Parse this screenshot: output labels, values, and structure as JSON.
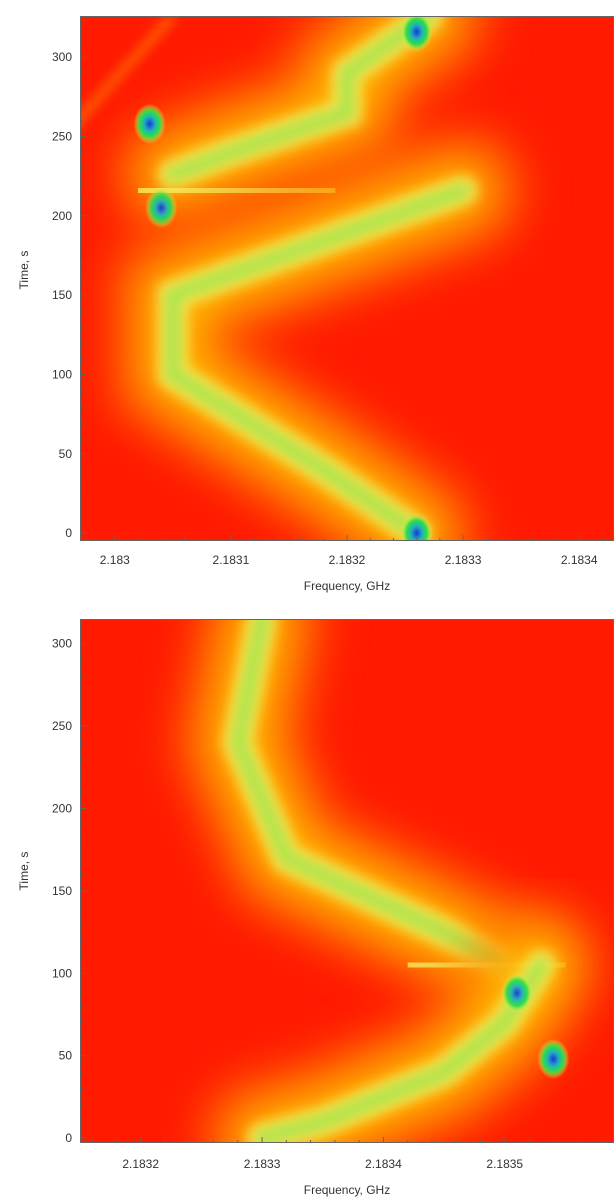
{
  "chart_data": [
    {
      "type": "heatmap",
      "title": "",
      "xlabel": "Frequency, GHz",
      "ylabel": "Time, s",
      "xlim": [
        2.18297,
        2.18343
      ],
      "ylim": [
        -5,
        326
      ],
      "x_ticks": [
        {
          "value": 2.183,
          "label": "2.183"
        },
        {
          "value": 2.1831,
          "label": "2.1831"
        },
        {
          "value": 2.1832,
          "label": "2.1832"
        },
        {
          "value": 2.1833,
          "label": "2.1833"
        },
        {
          "value": 2.1834,
          "label": "2.1834"
        }
      ],
      "y_ticks": [
        {
          "value": 0,
          "label": "0"
        },
        {
          "value": 50,
          "label": "50"
        },
        {
          "value": 100,
          "label": "100"
        },
        {
          "value": 150,
          "label": "150"
        },
        {
          "value": 200,
          "label": "200"
        },
        {
          "value": 250,
          "label": "250"
        },
        {
          "value": 300,
          "label": "300"
        }
      ],
      "colormap": [
        "#ff1a00",
        "#ff6a00",
        "#ffd000",
        "#f5f060",
        "#30e040",
        "#20b0c0",
        "#1838d0"
      ],
      "features": [
        {
          "kind": "upper-branch",
          "x": [
            2.18305,
            2.1831,
            2.1832,
            2.1832,
            2.18327
          ],
          "y": [
            226,
            240,
            265,
            290,
            326
          ],
          "level": 0.85
        },
        {
          "kind": "narrow-line",
          "x": [
            2.18295,
            2.18298,
            2.18305
          ],
          "y": [
            245,
            270,
            326
          ],
          "level": 0.7
        },
        {
          "kind": "hotspot",
          "x": 2.18303,
          "y": 258,
          "level": 1.0
        },
        {
          "kind": "hotspot",
          "x": 2.18326,
          "y": 316,
          "level": 1.0
        },
        {
          "kind": "jump",
          "x_from": 2.18302,
          "x_to": 2.18319,
          "y": 216,
          "level": 0.8
        },
        {
          "kind": "lower-branch",
          "x": [
            2.1833,
            2.18305,
            2.18305,
            2.18318,
            2.18326
          ],
          "y": [
            216,
            150,
            100,
            40,
            0
          ],
          "level": 0.85
        },
        {
          "kind": "hotspot",
          "x": 2.18304,
          "y": 205,
          "level": 0.95
        },
        {
          "kind": "hotspot",
          "x": 2.18326,
          "y": 0,
          "level": 1.0
        }
      ]
    },
    {
      "type": "heatmap",
      "title": "",
      "xlabel": "Frequency, GHz",
      "ylabel": "Time, s",
      "xlim": [
        2.18315,
        2.18359
      ],
      "ylim": [
        -3,
        315
      ],
      "x_ticks": [
        {
          "value": 2.1832,
          "label": "2.1832"
        },
        {
          "value": 2.1833,
          "label": "2.1833"
        },
        {
          "value": 2.1834,
          "label": "2.1834"
        },
        {
          "value": 2.1835,
          "label": "2.1835"
        }
      ],
      "y_ticks": [
        {
          "value": 0,
          "label": "0"
        },
        {
          "value": 50,
          "label": "50"
        },
        {
          "value": 100,
          "label": "100"
        },
        {
          "value": 150,
          "label": "150"
        },
        {
          "value": 200,
          "label": "200"
        },
        {
          "value": 250,
          "label": "250"
        },
        {
          "value": 300,
          "label": "300"
        }
      ],
      "colormap": [
        "#ff1a00",
        "#ff6a00",
        "#ffd000",
        "#f5f060",
        "#30e040",
        "#20b0c0",
        "#1838d0"
      ],
      "features": [
        {
          "kind": "upper-branch",
          "x": [
            2.1833,
            2.18328,
            2.18332,
            2.18345,
            2.1835
          ],
          "y": [
            315,
            240,
            170,
            125,
            105
          ],
          "level": 0.85
        },
        {
          "kind": "narrow-line",
          "x": [
            2.18328,
            2.18328
          ],
          "y": [
            150,
            230
          ],
          "level": 0.6
        },
        {
          "kind": "jump",
          "x_from": 2.18342,
          "x_to": 2.18355,
          "y": 105,
          "level": 0.8
        },
        {
          "kind": "lower-branch",
          "x": [
            2.18353,
            2.1835,
            2.18345,
            2.18335,
            2.1833
          ],
          "y": [
            105,
            70,
            40,
            10,
            0
          ],
          "level": 0.85
        },
        {
          "kind": "hotspot",
          "x": 2.18351,
          "y": 88,
          "level": 0.95
        },
        {
          "kind": "hotspot",
          "x": 2.18354,
          "y": 48,
          "level": 1.0
        }
      ]
    }
  ]
}
